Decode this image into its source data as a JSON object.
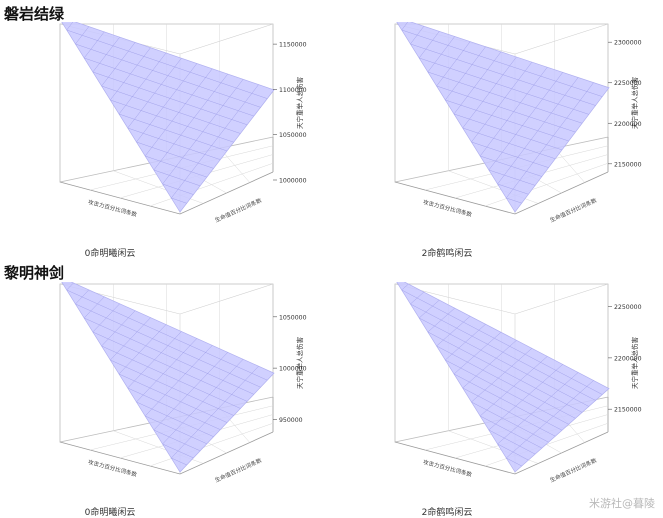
{
  "sections": [
    {
      "title": "磐岩结绿"
    },
    {
      "title": "黎明神剑"
    }
  ],
  "watermark": "米游社@暮陵",
  "chart_data": [
    {
      "type": "surface3d",
      "caption": "0命明曦闲云",
      "zlabel": "天宁重举人总伤害",
      "xlabel": "攻击力百分比词条数",
      "ylabel": "生命值百分比词条数",
      "z_ticks": [
        "1150000",
        "1100000",
        "1050000",
        "1000000"
      ],
      "zlim": [
        1000000,
        1170000
      ],
      "corner_values": {
        "back_left": 1170000,
        "front": 1000000,
        "right": 1105000,
        "back_right": 1170000
      },
      "grid_on": true
    },
    {
      "type": "surface3d",
      "caption": "2命鹤鸣闲云",
      "zlabel": "天宁重举人总伤害",
      "xlabel": "攻击力百分比词条数",
      "ylabel": "生命值百分比词条数",
      "z_ticks": [
        "2300000",
        "2250000",
        "2200000",
        "2150000"
      ],
      "zlim": [
        2130000,
        2320000
      ],
      "corner_values": {
        "back_left": 2320000,
        "front": 2130000,
        "right": 2250000,
        "back_right": 2320000
      },
      "grid_on": true
    },
    {
      "type": "surface3d",
      "caption": "0命明曦闲云",
      "zlabel": "天宁重举人总伤害",
      "xlabel": "攻击力百分比词条数",
      "ylabel": "生命值百分比词条数",
      "z_ticks": [
        "1050000",
        "1000000",
        "950000"
      ],
      "zlim": [
        930000,
        1080000
      ],
      "corner_values": {
        "back_left": 1080000,
        "front": 930000,
        "right": 1000000,
        "back_right": 1080000
      },
      "grid_on": true
    },
    {
      "type": "surface3d",
      "caption": "2命鹤鸣闲云",
      "zlabel": "天宁重举人总伤害",
      "xlabel": "攻击力百分比词条数",
      "ylabel": "生命值百分比词条数",
      "z_ticks": [
        "2250000",
        "2200000",
        "2150000"
      ],
      "zlim": [
        2120000,
        2270000
      ],
      "corner_values": {
        "back_left": 2270000,
        "front": 2120000,
        "right": 2175000,
        "back_right": 2270000
      },
      "grid_on": true
    }
  ]
}
